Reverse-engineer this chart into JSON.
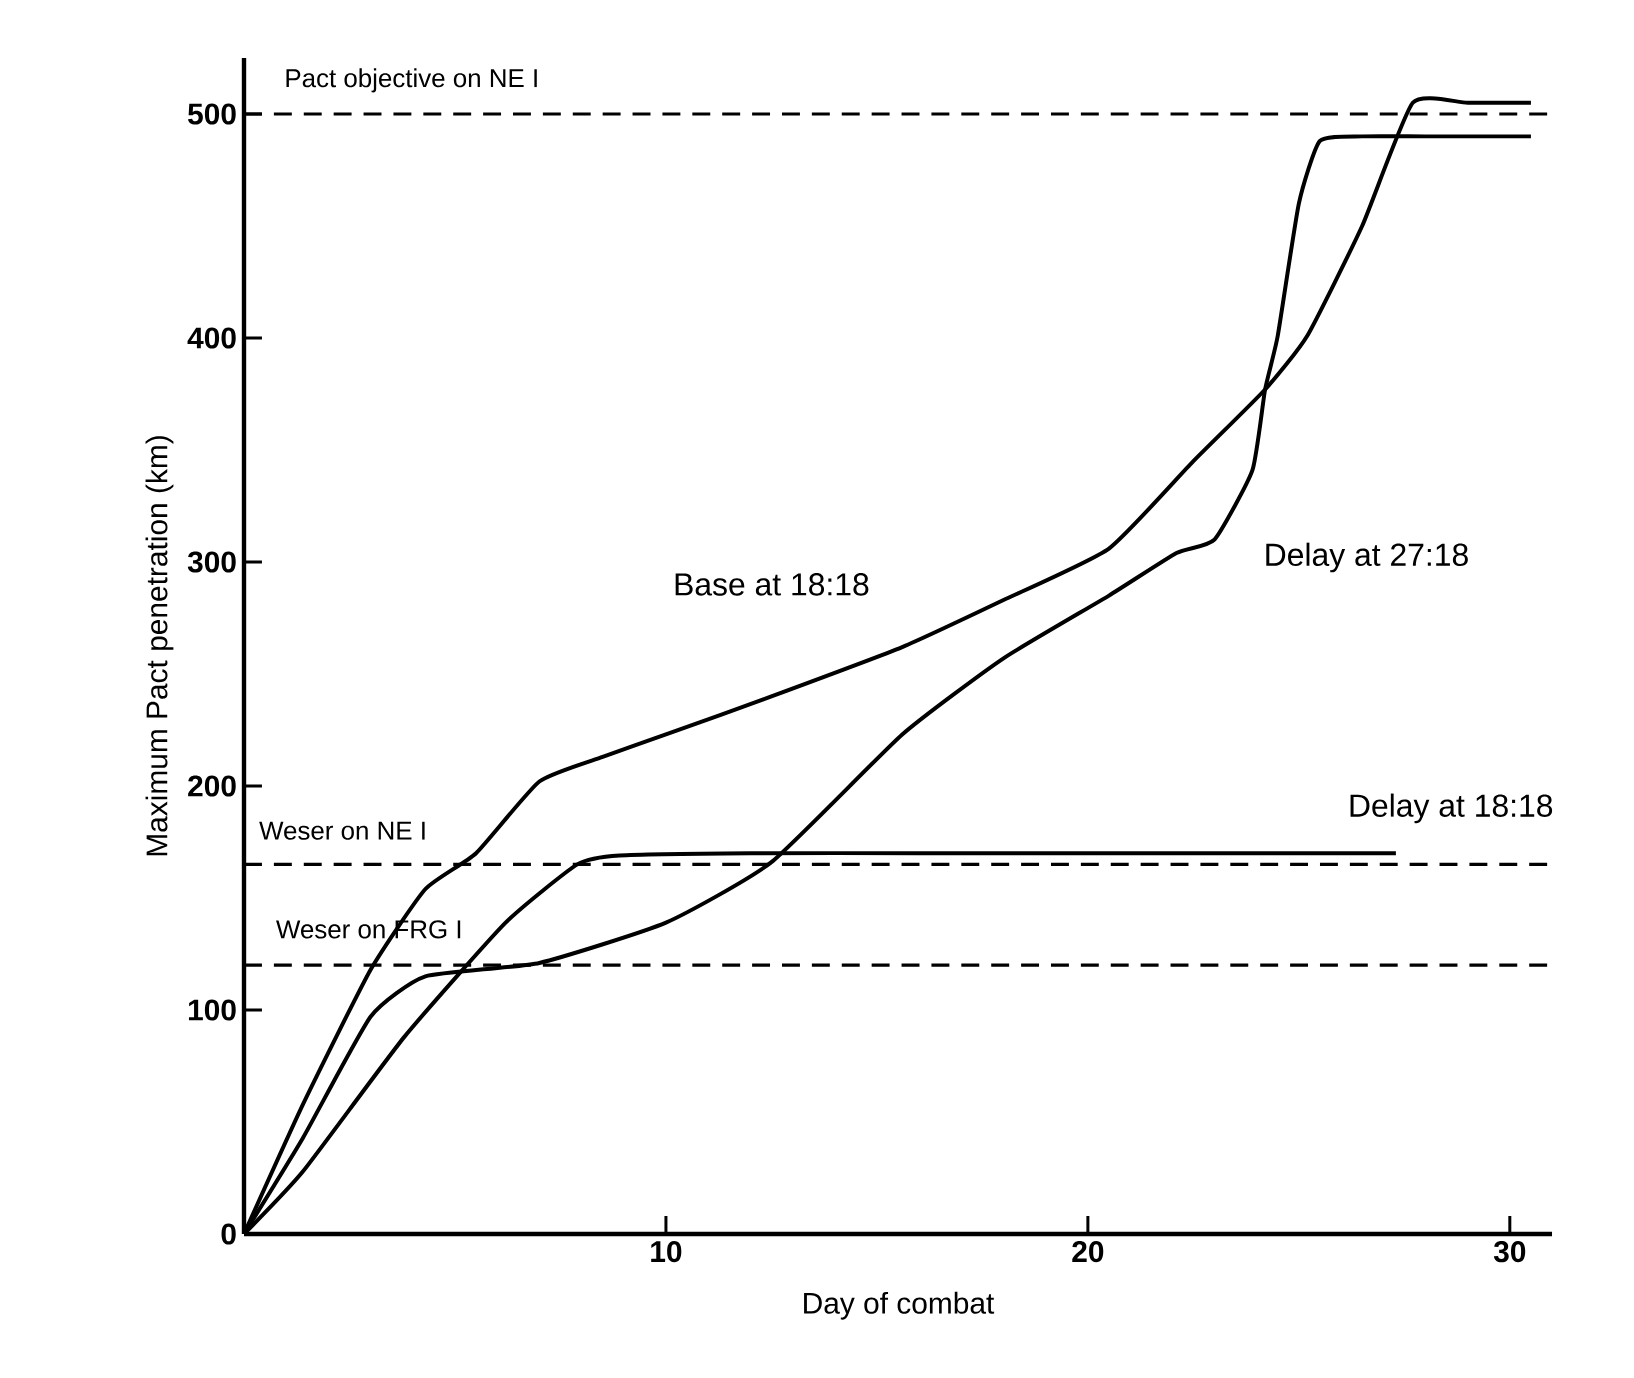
{
  "chart_data": {
    "type": "line",
    "xlabel": "Day of combat",
    "ylabel": "Maximum Pact penetration (km)",
    "xlim": [
      0,
      31
    ],
    "ylim": [
      0,
      525
    ],
    "xticks": [
      10,
      20,
      30
    ],
    "yticks": [
      0,
      100,
      200,
      300,
      400,
      500
    ],
    "grid": false,
    "legend": false,
    "marker": "none",
    "line_style": "solid",
    "series": [
      {
        "name": "Base at 18:18",
        "color": "#000000",
        "x": [
          0,
          1.4,
          3,
          4.3,
          5.5,
          7,
          8.5,
          10,
          12.5,
          15.6,
          18,
          20.5,
          22.5,
          24.2,
          25.2,
          26.5,
          27.7,
          29,
          30.5
        ],
        "values": [
          0,
          58,
          118,
          154,
          170,
          202,
          213,
          223,
          240,
          262,
          283,
          306,
          345,
          377,
          401,
          450,
          505,
          505,
          505
        ]
      },
      {
        "name": "Delay at 27:18",
        "color": "#000000",
        "x": [
          0,
          1.4,
          3,
          4.3,
          7,
          10,
          12.5,
          15.6,
          18,
          20.5,
          22.1,
          23,
          23.9,
          24.2,
          24.5,
          25,
          25.5,
          26.5,
          28,
          30.5
        ],
        "values": [
          0,
          43,
          97,
          115,
          121,
          139,
          166,
          223,
          257,
          285,
          304,
          310,
          341,
          377,
          401,
          460,
          488,
          490,
          490,
          490
        ]
      },
      {
        "name": "Delay at 18:18",
        "color": "#000000",
        "x": [
          0,
          1.4,
          3.8,
          6.2,
          7.9,
          8.9,
          12,
          16,
          20,
          24,
          27.3
        ],
        "values": [
          0,
          28,
          88,
          139,
          165,
          169,
          170,
          170,
          170,
          170,
          170
        ]
      }
    ],
    "ref_lines": [
      {
        "axis": "y",
        "value": 500,
        "label": "Pact objective on NE I",
        "line_style": "dashed"
      },
      {
        "axis": "y",
        "value": 165,
        "label": "Weser on NE I",
        "line_style": "dashed"
      },
      {
        "axis": "y",
        "value": 120,
        "label": "Weser on FRG I",
        "line_style": "dashed"
      }
    ]
  }
}
